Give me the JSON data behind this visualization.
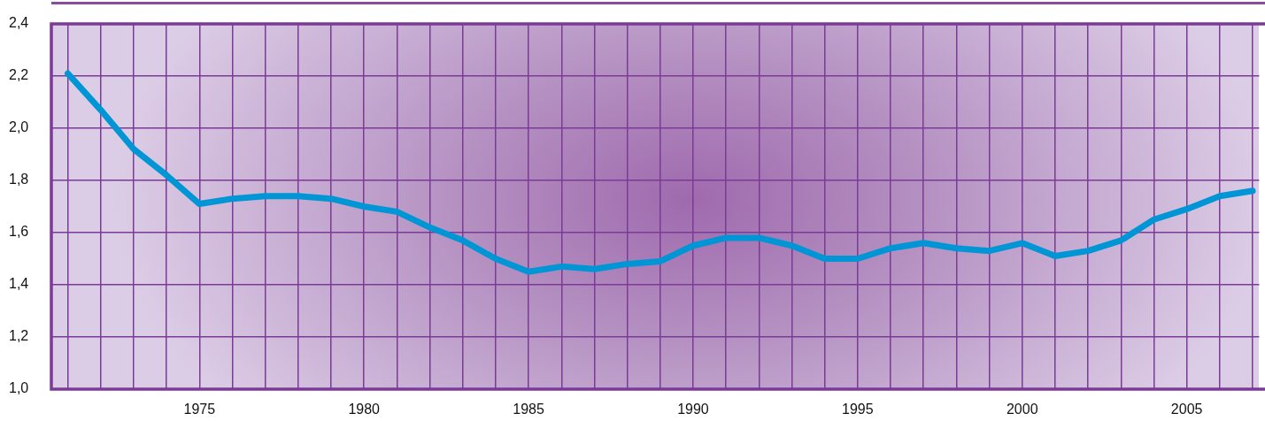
{
  "chart_data": {
    "type": "line",
    "x": [
      1971,
      1972,
      1973,
      1974,
      1975,
      1976,
      1977,
      1978,
      1979,
      1980,
      1981,
      1982,
      1983,
      1984,
      1985,
      1986,
      1987,
      1988,
      1989,
      1990,
      1991,
      1992,
      1993,
      1994,
      1995,
      1996,
      1997,
      1998,
      1999,
      2000,
      2001,
      2002,
      2003,
      2004,
      2005,
      2006,
      2007
    ],
    "values": [
      2.21,
      2.07,
      1.92,
      1.82,
      1.71,
      1.73,
      1.74,
      1.74,
      1.73,
      1.7,
      1.68,
      1.62,
      1.57,
      1.5,
      1.45,
      1.47,
      1.46,
      1.48,
      1.49,
      1.55,
      1.58,
      1.58,
      1.55,
      1.5,
      1.5,
      1.54,
      1.56,
      1.54,
      1.53,
      1.56,
      1.51,
      1.53,
      1.57,
      1.65,
      1.69,
      1.74,
      1.76
    ],
    "color": "#0096d6",
    "line_style": "solid",
    "xlim": [
      1970.5,
      2007.2
    ],
    "xticks": [
      {
        "value": 1971,
        "label": null
      },
      {
        "value": 1972,
        "label": null
      },
      {
        "value": 1973,
        "label": null
      },
      {
        "value": 1974,
        "label": null
      },
      1975,
      {
        "value": 1976,
        "label": null
      },
      {
        "value": 1977,
        "label": null
      },
      {
        "value": 1978,
        "label": null
      },
      {
        "value": 1979,
        "label": null
      },
      1980,
      {
        "value": 1981,
        "label": null
      },
      {
        "value": 1982,
        "label": null
      },
      {
        "value": 1983,
        "label": null
      },
      {
        "value": 1984,
        "label": null
      },
      1985,
      {
        "value": 1986,
        "label": null
      },
      {
        "value": 1987,
        "label": null
      },
      {
        "value": 1988,
        "label": null
      },
      {
        "value": 1989,
        "label": null
      },
      1990,
      {
        "value": 1991,
        "label": null
      },
      {
        "value": 1992,
        "label": null
      },
      {
        "value": 1993,
        "label": null
      },
      {
        "value": 1994,
        "label": null
      },
      1995,
      {
        "value": 1996,
        "label": null
      },
      {
        "value": 1997,
        "label": null
      },
      {
        "value": 1998,
        "label": null
      },
      {
        "value": 1999,
        "label": null
      },
      2000,
      {
        "value": 2001,
        "label": null
      },
      {
        "value": 2002,
        "label": null
      },
      {
        "value": 2003,
        "label": null
      },
      {
        "value": 2004,
        "label": null
      },
      2005,
      {
        "value": 2006,
        "label": null
      },
      {
        "value": 2007,
        "label": null
      }
    ],
    "ylim": [
      1.0,
      2.4
    ],
    "yticks": [
      {
        "value": 1.0,
        "label": "1,0"
      },
      {
        "value": 1.2,
        "label": "1,2"
      },
      {
        "value": 1.4,
        "label": "1,4"
      },
      {
        "value": 1.6,
        "label": "1,6"
      },
      {
        "value": 1.8,
        "label": "1,8"
      },
      {
        "value": 2.0,
        "label": "2,0"
      },
      {
        "value": 2.2,
        "label": "2,2"
      },
      {
        "value": 2.4,
        "label": "2,4"
      }
    ],
    "grid": true
  }
}
